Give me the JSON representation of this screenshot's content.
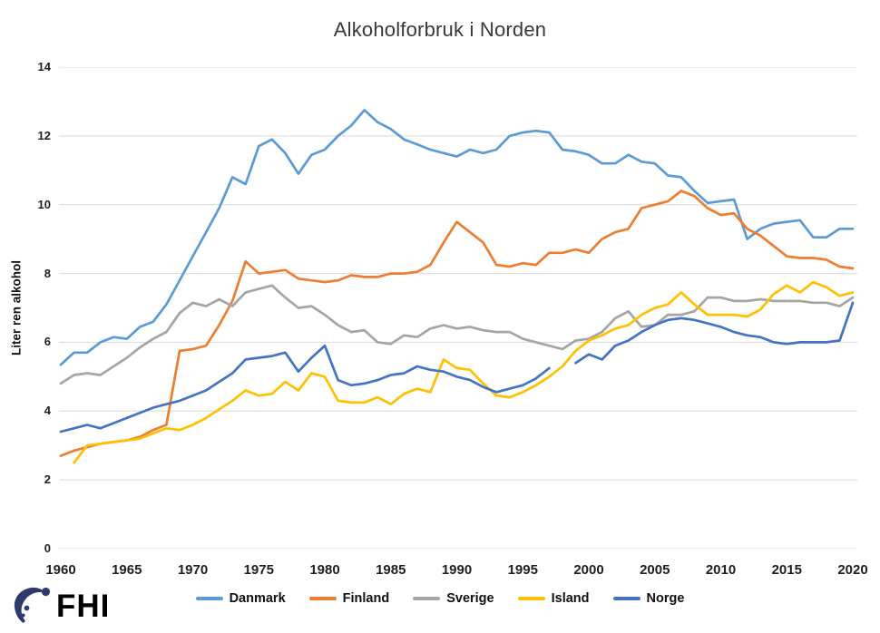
{
  "title": "Alkoholforbruk i Norden",
  "y_axis": {
    "label": "Liter ren alkohol",
    "ticks": [
      0,
      2,
      4,
      6,
      8,
      10,
      12,
      14
    ]
  },
  "x_axis": {
    "ticks": [
      1960,
      1965,
      1970,
      1975,
      1980,
      1985,
      1990,
      1995,
      2000,
      2005,
      2010,
      2015,
      2020
    ]
  },
  "logo": {
    "text": "FHI",
    "color": "#2E3A6E"
  },
  "grid_color": "#D9D9D9",
  "chart_data": {
    "type": "line",
    "title": "Alkoholforbruk i Norden",
    "ylabel": "Liter ren alkohol",
    "ylim": [
      0,
      14
    ],
    "grid": "horizontal",
    "legend_position": "bottom",
    "x": [
      1960,
      1961,
      1962,
      1963,
      1964,
      1965,
      1966,
      1967,
      1968,
      1969,
      1970,
      1971,
      1972,
      1973,
      1974,
      1975,
      1976,
      1977,
      1978,
      1979,
      1980,
      1981,
      1982,
      1983,
      1984,
      1985,
      1986,
      1987,
      1988,
      1989,
      1990,
      1991,
      1992,
      1993,
      1994,
      1995,
      1996,
      1997,
      1998,
      1999,
      2000,
      2001,
      2002,
      2003,
      2004,
      2005,
      2006,
      2007,
      2008,
      2009,
      2010,
      2011,
      2012,
      2013,
      2014,
      2015,
      2016,
      2017,
      2018,
      2019,
      2020
    ],
    "series": [
      {
        "name": "Danmark",
        "color": "#5B9BD5",
        "values": [
          5.35,
          5.7,
          5.7,
          6.0,
          6.15,
          6.1,
          6.45,
          6.6,
          7.1,
          7.8,
          8.5,
          9.2,
          9.9,
          10.8,
          10.6,
          11.7,
          11.9,
          11.5,
          10.9,
          11.45,
          11.6,
          12.0,
          12.3,
          12.75,
          12.4,
          12.2,
          11.9,
          11.75,
          11.6,
          11.5,
          11.4,
          11.6,
          11.5,
          11.6,
          12.0,
          12.1,
          12.15,
          12.1,
          11.6,
          11.55,
          11.45,
          11.2,
          11.2,
          11.45,
          11.25,
          11.2,
          10.85,
          10.8,
          10.4,
          10.05,
          10.1,
          10.15,
          9.0,
          9.3,
          9.45,
          9.5,
          9.55,
          9.05,
          9.05,
          9.3,
          9.3
        ]
      },
      {
        "name": "Finland",
        "color": "#ED7D31",
        "values": [
          2.7,
          2.85,
          2.95,
          3.05,
          3.1,
          3.15,
          3.25,
          3.45,
          3.6,
          5.75,
          5.8,
          5.9,
          6.5,
          7.2,
          8.35,
          8.0,
          8.05,
          8.1,
          7.85,
          7.8,
          7.75,
          7.8,
          7.95,
          7.9,
          7.9,
          8.0,
          8.0,
          8.05,
          8.25,
          8.9,
          9.5,
          9.2,
          8.9,
          8.25,
          8.2,
          8.3,
          8.25,
          8.6,
          8.6,
          8.7,
          8.6,
          9.0,
          9.2,
          9.3,
          9.9,
          10.0,
          10.1,
          10.4,
          10.25,
          9.9,
          9.7,
          9.75,
          9.3,
          9.1,
          8.8,
          8.5,
          8.45,
          8.45,
          8.4,
          8.2,
          8.15
        ]
      },
      {
        "name": "Sverige",
        "color": "#A5A5A5",
        "values": [
          4.8,
          5.05,
          5.1,
          5.05,
          5.3,
          5.55,
          5.85,
          6.1,
          6.3,
          6.85,
          7.15,
          7.05,
          7.25,
          7.05,
          7.45,
          7.55,
          7.65,
          7.3,
          7.0,
          7.05,
          6.8,
          6.5,
          6.3,
          6.35,
          6.0,
          5.95,
          6.2,
          6.15,
          6.4,
          6.5,
          6.4,
          6.45,
          6.35,
          6.3,
          6.3,
          6.1,
          6.0,
          5.9,
          5.8,
          6.05,
          6.1,
          6.3,
          6.7,
          6.9,
          6.45,
          6.5,
          6.8,
          6.8,
          6.9,
          7.3,
          7.3,
          7.2,
          7.2,
          7.25,
          7.2,
          7.2,
          7.2,
          7.15,
          7.15,
          7.05,
          7.3
        ]
      },
      {
        "name": "Island",
        "color": "#FFC000",
        "values": [
          null,
          2.5,
          3.0,
          3.05,
          3.1,
          3.15,
          3.2,
          3.35,
          3.5,
          3.45,
          3.6,
          3.8,
          4.05,
          4.3,
          4.6,
          4.45,
          4.5,
          4.85,
          4.6,
          5.1,
          5.0,
          4.3,
          4.25,
          4.25,
          4.4,
          4.2,
          4.5,
          4.65,
          4.55,
          5.5,
          5.25,
          5.2,
          4.8,
          4.45,
          4.4,
          4.55,
          4.75,
          5.0,
          5.3,
          5.75,
          6.05,
          6.2,
          6.4,
          6.5,
          6.8,
          7.0,
          7.1,
          7.45,
          7.1,
          6.8,
          6.8,
          6.8,
          6.75,
          6.95,
          7.4,
          7.65,
          7.45,
          7.75,
          7.6,
          7.35,
          7.45
        ]
      },
      {
        "name": "Norge",
        "color": "#4472C4",
        "values": [
          3.4,
          3.5,
          3.6,
          3.5,
          3.65,
          3.8,
          3.95,
          4.1,
          4.2,
          4.3,
          4.45,
          4.6,
          4.85,
          5.1,
          5.5,
          5.55,
          5.6,
          5.7,
          5.15,
          5.55,
          5.9,
          4.9,
          4.75,
          4.8,
          4.9,
          5.05,
          5.1,
          5.3,
          5.2,
          5.15,
          5.0,
          4.9,
          4.7,
          4.55,
          4.65,
          4.75,
          4.95,
          5.25,
          null,
          5.4,
          5.65,
          5.5,
          5.9,
          6.05,
          6.3,
          6.5,
          6.65,
          6.7,
          6.65,
          6.55,
          6.45,
          6.3,
          6.2,
          6.15,
          6.0,
          5.95,
          6.0,
          6.0,
          6.0,
          6.05,
          7.15
        ]
      }
    ]
  }
}
